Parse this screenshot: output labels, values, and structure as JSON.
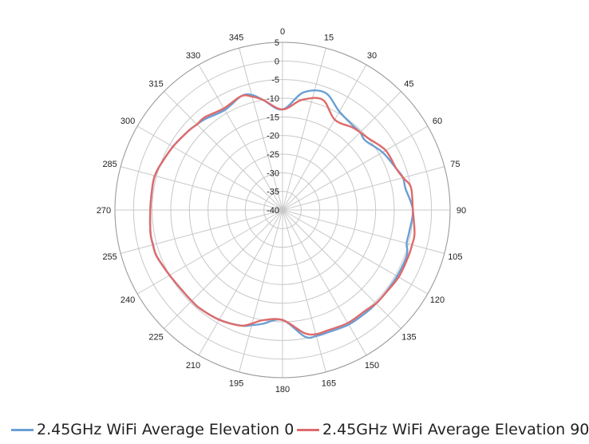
{
  "chart_data": {
    "type": "line",
    "subtype": "polar",
    "grid": true,
    "legend_position": "bottom",
    "angle_ticks": [
      "0",
      "15",
      "30",
      "45",
      "60",
      "75",
      "90",
      "105",
      "120",
      "135",
      "150",
      "165",
      "180",
      "195",
      "210",
      "225",
      "240",
      "255",
      "270",
      "285",
      "300",
      "315",
      "330",
      "345"
    ],
    "radial_ticks": [
      "5",
      "0",
      "-5",
      "-10",
      "-15",
      "-20",
      "-25",
      "-30",
      "-35",
      "-40"
    ],
    "radial_range": [
      -40,
      5
    ],
    "series": [
      {
        "name": "2.45GHz WiFi Average Elevation 0",
        "color": "#6a9fd4",
        "angles": [
          0,
          10,
          20,
          30,
          40,
          45,
          50,
          60,
          70,
          75,
          80,
          90,
          100,
          105,
          110,
          120,
          130,
          135,
          140,
          150,
          160,
          165,
          170,
          180,
          190,
          195,
          200,
          210,
          220,
          225,
          230,
          240,
          250,
          255,
          260,
          270,
          280,
          285,
          290,
          300,
          310,
          315,
          320,
          330,
          340,
          345,
          350
        ],
        "values": [
          -13,
          -8,
          -6.5,
          -9.5,
          -10.5,
          -10.5,
          -11,
          -9,
          -7.5,
          -6.5,
          -6.5,
          -5,
          -5.5,
          -5.5,
          -4.5,
          -4.5,
          -4.5,
          -4.5,
          -4.5,
          -4.5,
          -5,
          -5,
          -5.5,
          -10.5,
          -9,
          -8,
          -7,
          -6,
          -5.5,
          -5.5,
          -5.5,
          -5,
          -4,
          -4,
          -4,
          -4.5,
          -4.5,
          -4.5,
          -5,
          -6,
          -7,
          -7.5,
          -8,
          -9,
          -7.5,
          -8,
          -10
        ]
      },
      {
        "name": "2.45GHz WiFi Average Elevation 90",
        "color": "#de6b6b",
        "angles": [
          0,
          10,
          20,
          30,
          40,
          45,
          50,
          60,
          70,
          75,
          80,
          90,
          100,
          105,
          110,
          120,
          130,
          135,
          140,
          150,
          160,
          165,
          170,
          180,
          190,
          195,
          200,
          210,
          220,
          225,
          230,
          240,
          250,
          255,
          260,
          270,
          280,
          285,
          290,
          300,
          310,
          315,
          320,
          330,
          340,
          345,
          350
        ],
        "values": [
          -13,
          -10,
          -8.5,
          -12,
          -11,
          -10.5,
          -10,
          -8,
          -7.5,
          -6.5,
          -5,
          -5,
          -4,
          -4,
          -4,
          -4,
          -4.5,
          -4.5,
          -5,
          -5,
          -5.5,
          -5.5,
          -6.5,
          -10.5,
          -10,
          -8.5,
          -7,
          -6,
          -5.5,
          -5.5,
          -5.5,
          -5,
          -4,
          -4,
          -4,
          -4.5,
          -4.5,
          -4.5,
          -5,
          -6,
          -7,
          -7.5,
          -7.5,
          -8.5,
          -7.5,
          -8.5,
          -10
        ]
      }
    ]
  },
  "legend": {
    "item1_label": "2.45GHz WiFi Average Elevation 0",
    "item2_label": "2.45GHz WiFi Average Elevation 90",
    "item1_color": "#6a9fd4",
    "item2_color": "#de6b6b"
  }
}
